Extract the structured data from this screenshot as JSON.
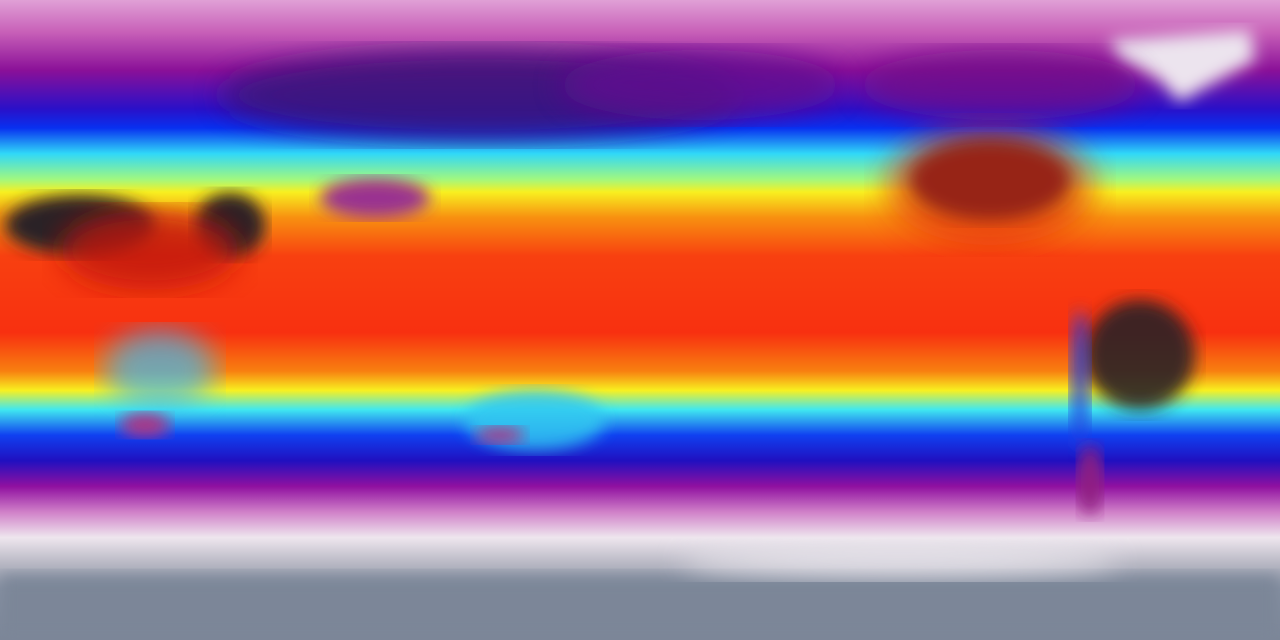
{
  "map": {
    "projection": "equirectangular",
    "palette": {
      "polar_north": "#d98ac8",
      "cold": "#a0109a",
      "cool": "#1010e0",
      "mild": "#30e8f8",
      "warm": "#f8f820",
      "hot": "#f83a10",
      "very_hot": "#2a2226",
      "ice": "#e8e0ec",
      "antarctic": "#8892a0"
    }
  }
}
